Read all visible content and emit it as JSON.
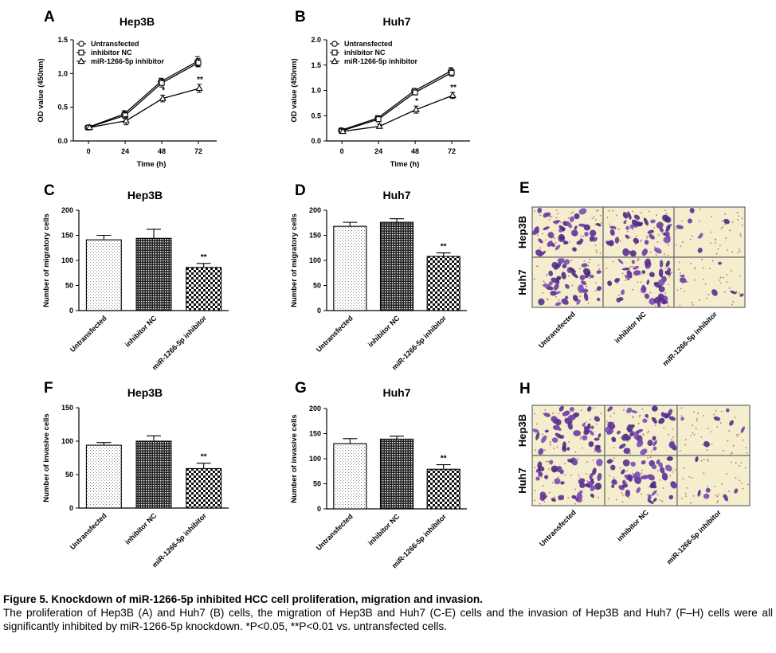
{
  "figure": {
    "panel_letters": [
      "A",
      "B",
      "C",
      "D",
      "E",
      "F",
      "G",
      "H"
    ],
    "caption_title": "Figure 5. Knockdown of miR-1266-5p inhibited HCC cell proliferation, migration and invasion.",
    "caption_body": "The proliferation of Hep3B (A) and Huh7 (B) cells, the migration of Hep3B and Huh7 (C-E) cells and the invasion of Hep3B and Huh7 (F–H) cells were all significantly inhibited by miR-1266-5p knockdown. *P<0.05, **P<0.01 vs. untransfected cells."
  },
  "images": [
    {
      "panel": "E",
      "rows": [
        "Hep3B",
        "Huh7"
      ],
      "columns": [
        "Untransfected",
        "inhibitor NC",
        "miR-1266-5p inhibitor"
      ]
    },
    {
      "panel": "H",
      "rows": [
        "Hep3B",
        "Huh7"
      ],
      "columns": [
        "Untransfected",
        "inhibitor NC",
        "miR-1266-5p inhibitor"
      ]
    }
  ],
  "colors": {
    "axis": "#000000",
    "stain": "#6a3aa0",
    "background_tile": "#f4eecf"
  },
  "chart_data": [
    {
      "panel": "A",
      "type": "line",
      "title": "Hep3B",
      "xlabel": "Time (h)",
      "ylabel": "OD value (450nm)",
      "x": [
        0,
        24,
        48,
        72
      ],
      "xlim": [
        -10,
        84
      ],
      "ylim": [
        0,
        1.5
      ],
      "yticks": [
        0.0,
        0.5,
        1.0,
        1.5
      ],
      "grid": false,
      "legend": "top-left",
      "series": [
        {
          "name": "Untransfected",
          "marker": "circle",
          "values": [
            0.2,
            0.4,
            0.88,
            1.18
          ],
          "err": [
            0.03,
            0.05,
            0.05,
            0.07
          ]
        },
        {
          "name": "inhibitor NC",
          "marker": "square",
          "values": [
            0.2,
            0.38,
            0.86,
            1.16
          ],
          "err": [
            0.03,
            0.05,
            0.06,
            0.06
          ]
        },
        {
          "name": "miR-1266-5p inhibitor",
          "marker": "triangle",
          "values": [
            0.2,
            0.3,
            0.63,
            0.78
          ],
          "err": [
            0.03,
            0.06,
            0.05,
            0.06
          ]
        }
      ],
      "annotations": [
        {
          "x": 48,
          "text": "*"
        },
        {
          "x": 72,
          "text": "**"
        }
      ]
    },
    {
      "panel": "B",
      "type": "line",
      "title": "Huh7",
      "xlabel": "Time (h)",
      "ylabel": "OD value (450nm)",
      "x": [
        0,
        24,
        48,
        72
      ],
      "xlim": [
        -10,
        84
      ],
      "ylim": [
        0,
        2.0
      ],
      "yticks": [
        0.0,
        0.5,
        1.0,
        1.5,
        2.0
      ],
      "grid": false,
      "legend": "top-left",
      "series": [
        {
          "name": "Untransfected",
          "marker": "circle",
          "values": [
            0.21,
            0.45,
            0.99,
            1.38
          ],
          "err": [
            0.04,
            0.05,
            0.05,
            0.07
          ]
        },
        {
          "name": "inhibitor NC",
          "marker": "square",
          "values": [
            0.2,
            0.43,
            0.96,
            1.35
          ],
          "err": [
            0.04,
            0.05,
            0.05,
            0.07
          ]
        },
        {
          "name": "miR-1266-5p inhibitor",
          "marker": "triangle",
          "values": [
            0.19,
            0.29,
            0.62,
            0.9
          ],
          "err": [
            0.04,
            0.04,
            0.07,
            0.06
          ]
        }
      ],
      "annotations": [
        {
          "x": 48,
          "text": "*"
        },
        {
          "x": 72,
          "text": "**"
        }
      ]
    },
    {
      "panel": "C",
      "type": "bar",
      "title": "Hep3B",
      "xlabel": "",
      "ylabel": "Number of migratory cells",
      "categories": [
        "Untransfected",
        "inhibitor NC",
        "miR-1266-5p inhibitor"
      ],
      "values": [
        141,
        144,
        86
      ],
      "err": [
        9,
        18,
        8
      ],
      "patterns": [
        "dots",
        "grid",
        "checker"
      ],
      "ylim": [
        0,
        200
      ],
      "yticks": [
        0,
        50,
        100,
        150,
        200
      ],
      "annotations": [
        {
          "index": 2,
          "text": "**"
        }
      ]
    },
    {
      "panel": "D",
      "type": "bar",
      "title": "Huh7",
      "xlabel": "",
      "ylabel": "Number of migratory cells",
      "categories": [
        "Untransfected",
        "inhibitor NC",
        "miR-1266-5p inhibitor"
      ],
      "values": [
        168,
        176,
        108
      ],
      "err": [
        8,
        7,
        7
      ],
      "patterns": [
        "dots",
        "grid",
        "checker"
      ],
      "ylim": [
        0,
        200
      ],
      "yticks": [
        0,
        50,
        100,
        150,
        200
      ],
      "annotations": [
        {
          "index": 2,
          "text": "**"
        }
      ]
    },
    {
      "panel": "F",
      "type": "bar",
      "title": "Hep3B",
      "xlabel": "",
      "ylabel": "Number of invasive cells",
      "categories": [
        "Untransfected",
        "inhibitor NC",
        "miR-1266-5p inhibitor"
      ],
      "values": [
        94,
        100,
        59
      ],
      "err": [
        4,
        8,
        8
      ],
      "patterns": [
        "dots",
        "grid",
        "checker"
      ],
      "ylim": [
        0,
        150
      ],
      "yticks": [
        0,
        50,
        100,
        150
      ],
      "annotations": [
        {
          "index": 2,
          "text": "**"
        }
      ]
    },
    {
      "panel": "G",
      "type": "bar",
      "title": "Huh7",
      "xlabel": "",
      "ylabel": "Number of invasive cells",
      "categories": [
        "Untransfected",
        "inhibitor NC",
        "miR-1266-5p inhibitor"
      ],
      "values": [
        130,
        139,
        79
      ],
      "err": [
        10,
        6,
        9
      ],
      "patterns": [
        "dots",
        "grid",
        "checker"
      ],
      "ylim": [
        0,
        200
      ],
      "yticks": [
        0,
        50,
        100,
        150,
        200
      ],
      "annotations": [
        {
          "index": 2,
          "text": "**"
        }
      ]
    }
  ]
}
